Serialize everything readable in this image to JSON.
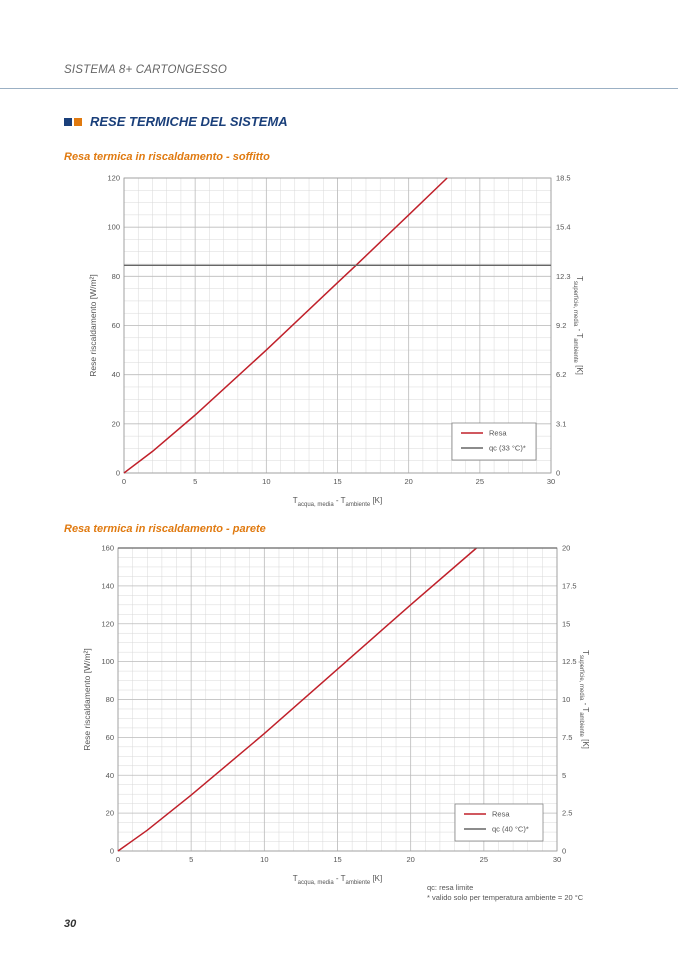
{
  "header": {
    "title": "SISTEMA 8+ CARTONGESSO"
  },
  "section": {
    "title": "RESE TERMICHE DEL SISTEMA",
    "square_colors": [
      "#1a3f7a",
      "#e07a10"
    ]
  },
  "page_number": "30",
  "footnotes": {
    "line1": "qᴄ: resa limite",
    "line2": "* valido solo per temperatura ambiente = 20 °C"
  },
  "colors": {
    "resa": "#c0202a",
    "limit": "#666666",
    "grid": "#d8d8d8"
  },
  "chart_data": [
    {
      "type": "line",
      "title": "Resa termica in riscaldamento - soffitto",
      "xlabel": {
        "main": "T",
        "sub1": "acqua, media",
        "mid": " - T",
        "sub2": "ambiente",
        "end": " [K]"
      },
      "ylabel": "Rese riscaldamento [W/m²]",
      "y2label": {
        "main": "T",
        "sub1": "superficie, media",
        "mid": " - T",
        "sub2": "ambiente",
        "end": " [K]"
      },
      "xlim": [
        0,
        30
      ],
      "ylim": [
        0,
        120
      ],
      "xticks": [
        0,
        5,
        10,
        15,
        20,
        25,
        30
      ],
      "yticks": [
        0,
        20,
        40,
        60,
        80,
        100,
        120
      ],
      "y2ticks": [
        "0",
        "3.1",
        "6.2",
        "9.2",
        "12.3",
        "15.4",
        "18.5"
      ],
      "grid": true,
      "legend_position": "bottom-right",
      "series": [
        {
          "name": "Resa",
          "x": [
            0,
            2,
            5,
            10,
            15,
            16.3,
            20,
            22.7
          ],
          "y": [
            0,
            8.8,
            23.6,
            50,
            77.4,
            84.5,
            105,
            120
          ]
        },
        {
          "name": "qᴄ (33 °C)*",
          "x": [
            0,
            30
          ],
          "y": [
            84.5,
            84.5
          ]
        }
      ]
    },
    {
      "type": "line",
      "title": "Resa termica in riscaldamento - parete",
      "xlabel": {
        "main": "T",
        "sub1": "acqua, media",
        "mid": " - T",
        "sub2": "ambiente",
        "end": " [K]"
      },
      "ylabel": "Rese riscaldamento [W/m²]",
      "y2label": {
        "main": "T",
        "sub1": "superficie, media",
        "mid": " - T",
        "sub2": "ambiente",
        "end": " [K]"
      },
      "xlim": [
        0,
        30
      ],
      "ylim": [
        0,
        160
      ],
      "xticks": [
        0,
        5,
        10,
        15,
        20,
        25,
        30
      ],
      "yticks": [
        0,
        20,
        40,
        60,
        80,
        100,
        120,
        140,
        160
      ],
      "y2ticks": [
        "0",
        "2.5",
        "5",
        "7.5",
        "10",
        "12.5",
        "15",
        "17.5",
        "20"
      ],
      "grid": true,
      "legend_position": "bottom-right",
      "series": [
        {
          "name": "Resa",
          "x": [
            0,
            2,
            5,
            10,
            15,
            20,
            24.5
          ],
          "y": [
            0,
            11,
            29.5,
            62,
            96,
            130,
            160
          ]
        },
        {
          "name": "qᴄ (40 °C)*",
          "x": [
            0,
            30
          ],
          "y": [
            160,
            160
          ]
        }
      ]
    }
  ]
}
